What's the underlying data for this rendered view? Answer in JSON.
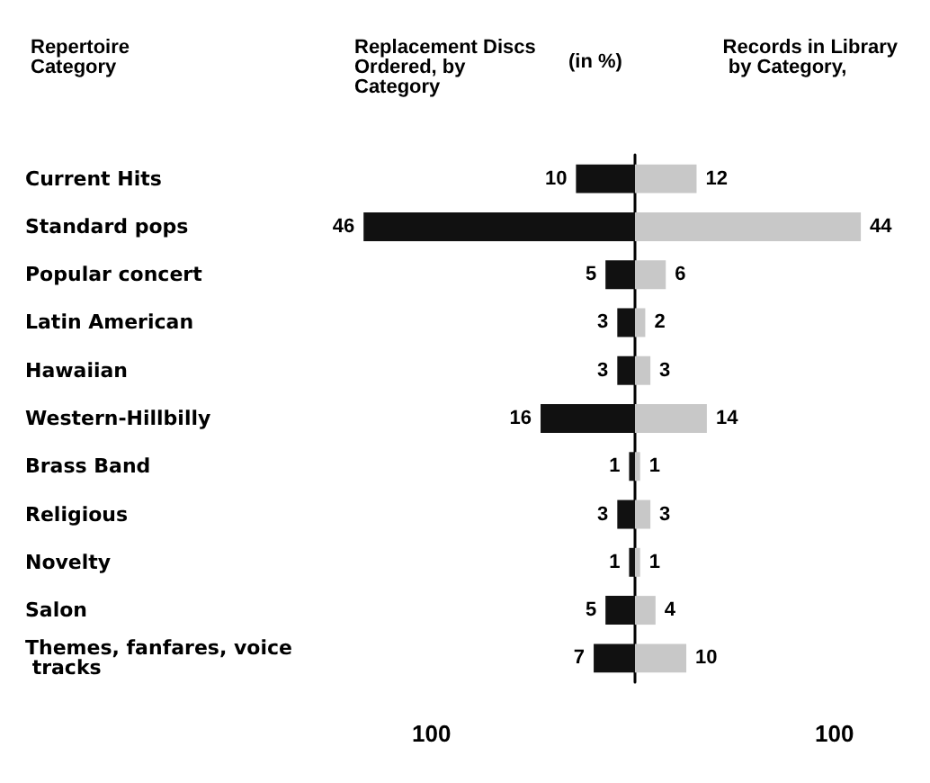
{
  "chart_data": [
    {
      "type": "bar",
      "orientation": "horizontal",
      "title": "Replacement Discs Ordered, by Category",
      "ylabel": "Repertoire Category",
      "subtitle": "(in %)",
      "categories": [
        "Current Hits",
        "Standard pops",
        "Popular concert",
        "Latin American",
        "Hawaiian",
        "Western-Hillbilly",
        "Brass Band",
        "Religious",
        "Novelty",
        "Salon",
        "Themes, fanfares, voice tracks"
      ],
      "series": [
        {
          "color": "#111111",
          "values": [
            10,
            46,
            5,
            3,
            3,
            16,
            1,
            3,
            1,
            5,
            7
          ]
        }
      ],
      "data_labels": true,
      "annotations": [
        "100"
      ]
    },
    {
      "type": "bar",
      "orientation": "horizontal",
      "title": "Records in Library by Category,",
      "categories": [
        "Current Hits",
        "Standard pops",
        "Popular concert",
        "Latin American",
        "Hawaiian",
        "Western-Hillbilly",
        "Brass Band",
        "Religious",
        "Novelty",
        "Salon",
        "Themes, fanfares, voice tracks"
      ],
      "series": [
        {
          "color": "#c8c8c8",
          "values": [
            12,
            44,
            6,
            2,
            3,
            14,
            1,
            3,
            1,
            4,
            10
          ]
        }
      ],
      "data_labels": true,
      "annotations": [
        "100"
      ],
      "tick_labels": false
    }
  ]
}
